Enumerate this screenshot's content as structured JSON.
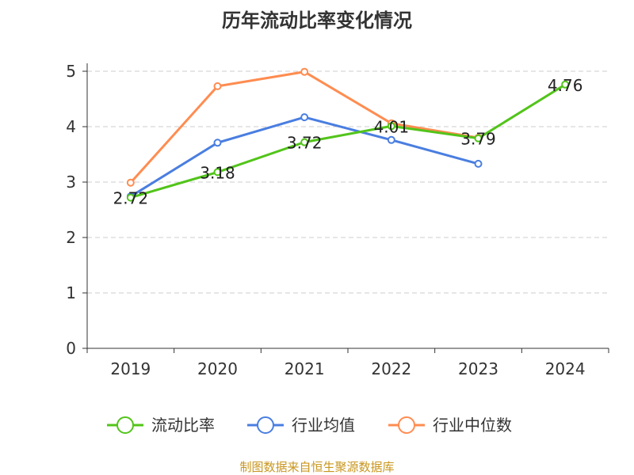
{
  "chart_data": {
    "type": "line",
    "title": "历年流动比率变化情况",
    "categories": [
      "2019",
      "2020",
      "2021",
      "2022",
      "2023",
      "2024"
    ],
    "ylim": [
      0,
      5
    ],
    "yticks": [
      0,
      1,
      2,
      3,
      4,
      5
    ],
    "grid": true,
    "legend_position": "bottom",
    "series": [
      {
        "name": "流动比率",
        "color": "#52c41a",
        "values": [
          2.72,
          3.18,
          3.72,
          4.01,
          3.79,
          4.76
        ],
        "labels": [
          "2.72",
          "3.18",
          "3.72",
          "4.01",
          "3.79",
          "4.76"
        ]
      },
      {
        "name": "行业均值",
        "color": "#4a7ee0",
        "values": [
          2.74,
          3.71,
          4.17,
          3.76,
          3.33,
          null
        ]
      },
      {
        "name": "行业中位数",
        "color": "#ff8c50",
        "values": [
          2.99,
          4.73,
          4.99,
          4.06,
          3.8,
          null
        ]
      }
    ]
  },
  "source": "制图数据来自恒生聚源数据库"
}
